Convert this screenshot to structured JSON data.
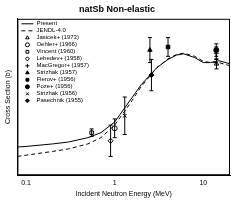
{
  "chart_data": {
    "type": "line",
    "title": "natSb Non-elastic",
    "x_label": "Incident Neutron Energy (MeV)",
    "y_label": "Cross Section (b)",
    "log": "x",
    "grid": false,
    "legend": "upper left",
    "tick_labels": "x",
    "xlim": [
      0.08,
      20
    ],
    "xticks": [
      0.1,
      1,
      10
    ],
    "ylim": [
      0,
      2.5
    ],
    "yticks": [
      0,
      0.5,
      1,
      1.5,
      2,
      2.5
    ],
    "series": [
      {
        "name": "Present",
        "type": "line",
        "line_style": "solid",
        "color": "#000000",
        "x": [
          0.08,
          0.1,
          0.2,
          0.3,
          0.5,
          0.7,
          1,
          1.5,
          2,
          3,
          4,
          5,
          6,
          8,
          10,
          12,
          15,
          20
        ],
        "values": [
          0.45,
          0.46,
          0.5,
          0.53,
          0.6,
          0.68,
          0.85,
          1.2,
          1.45,
          1.72,
          1.85,
          1.92,
          1.94,
          1.88,
          1.8,
          1.8,
          1.83,
          1.78
        ]
      },
      {
        "name": "JENDL-4.0",
        "type": "line",
        "line_style": "dashed",
        "color": "#000000",
        "x": [
          0.08,
          0.1,
          0.2,
          0.3,
          0.5,
          0.7,
          1,
          1.5,
          2,
          3,
          4,
          5,
          6,
          8,
          10,
          12,
          15,
          20
        ],
        "values": [
          0.3,
          0.32,
          0.38,
          0.42,
          0.5,
          0.6,
          0.8,
          1.15,
          1.42,
          1.72,
          1.86,
          1.93,
          1.95,
          1.9,
          1.82,
          1.8,
          1.8,
          1.75
        ]
      },
      {
        "name": "Jasicek+ (1973)",
        "type": "scatter",
        "marker": "open-triangle",
        "color": "#000000",
        "x": [
          14.1
        ],
        "values": [
          1.78
        ],
        "errors": [
          0.08
        ]
      },
      {
        "name": "Oehler+ (1966)",
        "type": "scatter",
        "marker": "open-circle",
        "color": "#000000",
        "x": [
          1.0
        ],
        "values": [
          0.75
        ],
        "errors": [
          0.15
        ]
      },
      {
        "name": "Vincent (1960)",
        "type": "scatter",
        "marker": "open-square",
        "color": "#000000",
        "x": [
          0.55
        ],
        "values": [
          0.68
        ],
        "errors": [
          0.06
        ]
      },
      {
        "name": "Lebedev+ (1958)",
        "type": "scatter",
        "marker": "open-diamond",
        "color": "#000000",
        "x": [
          0.9
        ],
        "values": [
          0.55
        ],
        "errors": [
          0.25
        ]
      },
      {
        "name": "MacGregor+ (1957)",
        "type": "scatter",
        "marker": "cross",
        "color": "#000000",
        "x": [
          14.0
        ],
        "values": [
          1.95
        ],
        "errors": [
          0.1
        ]
      },
      {
        "name": "Strizhak (1957)",
        "type": "scatter",
        "marker": "filled-triangle",
        "color": "#000000",
        "x": [
          2.5
        ],
        "values": [
          2.0
        ],
        "errors": [
          0.2
        ]
      },
      {
        "name": "Flerov+ (1956)",
        "type": "scatter",
        "marker": "filled-square",
        "color": "#000000",
        "x": [
          4.0
        ],
        "values": [
          2.05
        ],
        "errors": [
          0.15
        ]
      },
      {
        "name": "Poze+ (1956)",
        "type": "scatter",
        "marker": "filled-circle",
        "color": "#000000",
        "x": [
          14.0
        ],
        "values": [
          2.0
        ],
        "errors": [
          0.1
        ]
      },
      {
        "name": "Strizhak (1956)",
        "type": "scatter",
        "marker": "x",
        "color": "#000000",
        "x": [
          1.3
        ],
        "values": [
          0.95
        ],
        "errors": [
          0.3
        ]
      },
      {
        "name": "Pasechnik (1955)",
        "type": "scatter",
        "marker": "filled-diamond",
        "color": "#000000",
        "x": [
          2.6
        ],
        "values": [
          1.6
        ],
        "errors": [
          0.25
        ]
      }
    ]
  }
}
